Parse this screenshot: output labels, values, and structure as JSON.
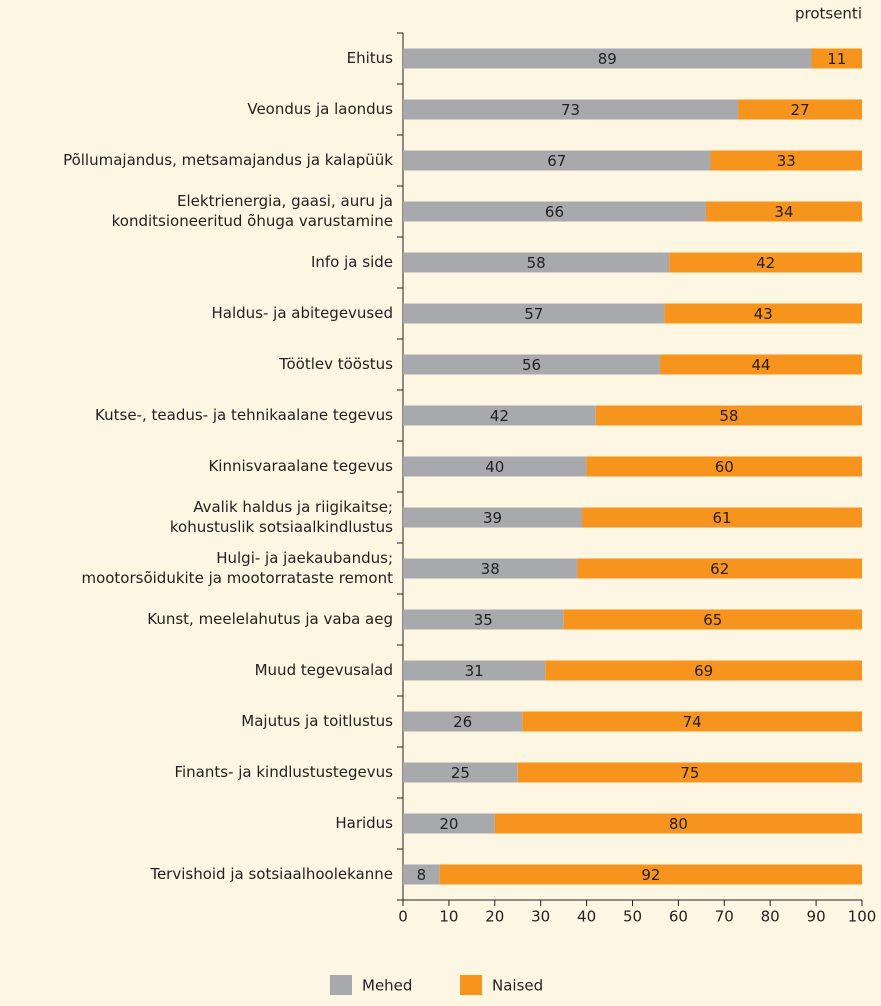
{
  "chart_data": {
    "type": "stacked-barh",
    "unit_label": "protsenti",
    "categories": [
      "Ehitus",
      "Veondus ja laondus",
      "Põllumajandus, metsamajandus ja kalapüük",
      [
        "Elektrienergia, gaasi, auru ja",
        "konditsioneeritud õhuga varustamine"
      ],
      "Info ja side",
      "Haldus- ja abitegevused",
      "Töötlev tööstus",
      "Kutse-, teadus- ja tehnikaalane tegevus",
      "Kinnisvaraalane tegevus",
      [
        "Avalik haldus ja riigikaitse;",
        "kohustuslik sotsiaalkindlustus"
      ],
      [
        "Hulgi- ja jaekaubandus;",
        "mootorsõidukite ja mootorrataste remont"
      ],
      "Kunst, meelelahutus ja vaba aeg",
      "Muud tegevusalad",
      "Majutus ja toitlustus",
      "Finants- ja kindlustustegevus",
      "Haridus",
      "Tervishoid ja sotsiaalhoolekanne"
    ],
    "series": [
      {
        "name": "Mehed",
        "color": "#a7a9ac",
        "values": [
          89,
          73,
          67,
          66,
          58,
          57,
          56,
          42,
          40,
          39,
          38,
          35,
          31,
          26,
          25,
          20,
          8
        ]
      },
      {
        "name": "Naised",
        "color": "#f7941d",
        "values": [
          11,
          27,
          33,
          34,
          42,
          43,
          44,
          58,
          60,
          61,
          62,
          65,
          69,
          74,
          75,
          80,
          92
        ]
      }
    ],
    "xlim": [
      0,
      100
    ],
    "xticks": [
      0,
      10,
      20,
      30,
      40,
      50,
      60,
      70,
      80,
      90,
      100
    ]
  }
}
